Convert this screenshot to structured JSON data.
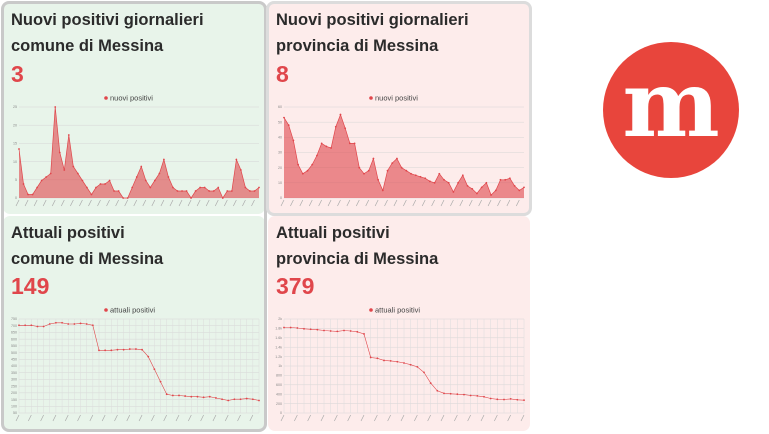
{
  "cards": [
    {
      "title_line1": "Nuovi positivi giornalieri",
      "title_line2": "comune di Messina",
      "value": "3"
    },
    {
      "title_line1": "Nuovi positivi giornalieri",
      "title_line2": "provincia di Messina",
      "value": "8"
    },
    {
      "title_line1": "Attuali positivi",
      "title_line2": "comune di Messina",
      "value": "149"
    },
    {
      "title_line1": "Attuali positivi",
      "title_line2": "provincia di Messina",
      "value": "379"
    }
  ],
  "logo": {
    "letter": "m",
    "color": "#e8453c"
  },
  "colors": {
    "series": "#e0464b",
    "green_bg": "#e8f4ea",
    "pink_bg": "#fdeceb"
  },
  "chart_data": [
    {
      "type": "area",
      "series": [
        {
          "name": "nuovi positivi",
          "values": [
            14,
            4,
            1,
            1,
            3,
            5,
            6,
            7,
            26,
            13,
            8,
            18,
            9,
            7,
            5,
            3,
            1,
            3,
            4,
            4,
            5,
            2,
            2,
            0,
            0,
            3,
            6,
            9,
            5,
            3,
            5,
            7,
            11,
            6,
            3,
            2,
            2,
            2,
            0,
            2,
            3,
            3,
            2,
            2,
            3,
            0,
            2,
            2,
            11,
            8,
            3,
            2,
            2,
            3
          ]
        }
      ],
      "ylim": [
        0,
        26
      ],
      "yticks": [
        "25",
        "20",
        "15",
        "10",
        "5",
        "0"
      ],
      "legend": "top-center",
      "grid": true
    },
    {
      "type": "area",
      "series": [
        {
          "name": "nuovi positivi",
          "values": [
            53,
            48,
            38,
            22,
            16,
            18,
            22,
            28,
            36,
            34,
            33,
            47,
            55,
            46,
            36,
            36,
            20,
            16,
            18,
            26,
            12,
            5,
            18,
            23,
            26,
            20,
            18,
            16,
            15,
            14,
            13,
            11,
            10,
            16,
            12,
            10,
            4,
            10,
            15,
            8,
            6,
            3,
            7,
            10,
            2,
            5,
            12,
            12,
            13,
            8,
            5,
            7
          ]
        }
      ],
      "ylim": [
        0,
        60
      ],
      "yticks": [
        "60",
        "50",
        "40",
        "30",
        "20",
        "10",
        "0"
      ],
      "legend": "top-center",
      "grid": true
    },
    {
      "type": "line",
      "series": [
        {
          "name": "attuali positivi",
          "values": [
            700,
            700,
            700,
            690,
            690,
            710,
            720,
            720,
            710,
            710,
            715,
            710,
            700,
            500,
            500,
            500,
            505,
            505,
            510,
            510,
            505,
            450,
            350,
            250,
            150,
            140,
            140,
            135,
            130,
            130,
            125,
            130,
            120,
            110,
            100,
            110,
            110,
            115,
            110,
            100
          ]
        }
      ],
      "ylim": [
        0,
        750
      ],
      "yticks": [
        "750",
        "700",
        "650",
        "600",
        "550",
        "500",
        "450",
        "400",
        "350",
        "300",
        "250",
        "200",
        "150",
        "100",
        "50"
      ],
      "legend": "top-center",
      "grid": true
    },
    {
      "type": "line",
      "series": [
        {
          "name": "attuali positivi",
          "values": [
            2000,
            2000,
            1990,
            1970,
            1960,
            1950,
            1930,
            1920,
            1910,
            1930,
            1920,
            1900,
            1850,
            1300,
            1280,
            1230,
            1220,
            1200,
            1170,
            1130,
            1080,
            950,
            700,
            520,
            460,
            450,
            440,
            430,
            410,
            400,
            380,
            340,
            320,
            315,
            330,
            310,
            300
          ]
        }
      ],
      "ylim": [
        0,
        2200
      ],
      "yticks": [
        "2k",
        "1.8k",
        "1.6k",
        "1.4k",
        "1.2k",
        "1k",
        "800",
        "600",
        "400",
        "200",
        "0"
      ],
      "legend": "top-center",
      "grid": true
    }
  ]
}
